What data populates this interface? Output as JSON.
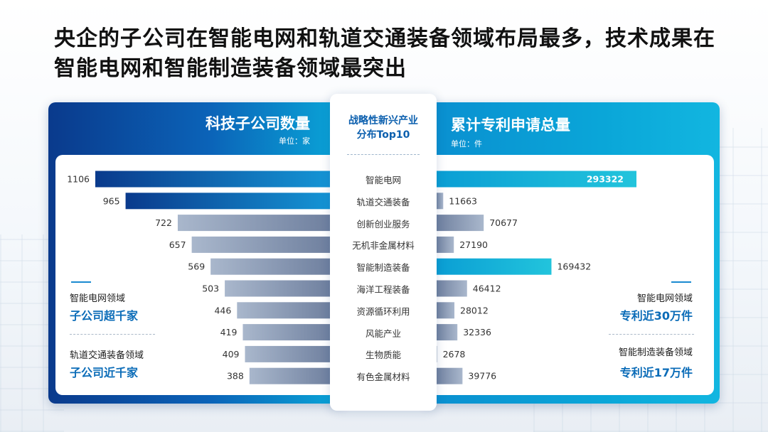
{
  "title": "央企的子公司在智能电网和轨道交通装备领域布局最多，技术成果在智能电网和智能制造装备领域最突出",
  "colors": {
    "left_highlight_start": "#0a3a8c",
    "left_highlight_end": "#1596d6",
    "right_highlight_start": "#0aa6d8",
    "right_highlight_end": "#22c4dc",
    "gray_start": "#a9b7cc",
    "gray_end": "#6e7f9e"
  },
  "center": {
    "heading_line1": "战略性新兴产业",
    "heading_line2": "分布Top10"
  },
  "left_panel": {
    "heading": "科技子公司数量",
    "unit": "单位：家",
    "notes": [
      {
        "label": "智能电网领域",
        "highlight": "子公司超千家"
      },
      {
        "label": "轨道交通装备领域",
        "highlight": "子公司近千家"
      }
    ]
  },
  "right_panel": {
    "heading": "累计专利申请总量",
    "unit": "单位：件",
    "notes": [
      {
        "label": "智能电网领域",
        "highlight": "专利近30万件"
      },
      {
        "label": "智能制造装备领域",
        "highlight": "专利近17万件"
      }
    ]
  },
  "chart_data": {
    "type": "bar",
    "orientation": "horizontal-butterfly",
    "categories": [
      "智能电网",
      "轨道交通装备",
      "创新创业服务",
      "无机非金属材料",
      "智能制造装备",
      "海洋工程装备",
      "资源循环利用",
      "风能产业",
      "生物质能",
      "有色金属材料"
    ],
    "series": [
      {
        "name": "科技子公司数量",
        "unit": "家",
        "values": [
          1106,
          965,
          722,
          657,
          569,
          503,
          446,
          419,
          409,
          388
        ],
        "highlight": [
          0,
          1
        ]
      },
      {
        "name": "累计专利申请总量",
        "unit": "件",
        "values": [
          293322,
          11663,
          70677,
          27190,
          169432,
          46412,
          28012,
          32336,
          2678,
          39776
        ],
        "highlight": [
          0,
          4
        ]
      }
    ],
    "left_xlim": [
      0,
      1106
    ],
    "right_xlim": [
      0,
      293322
    ]
  }
}
